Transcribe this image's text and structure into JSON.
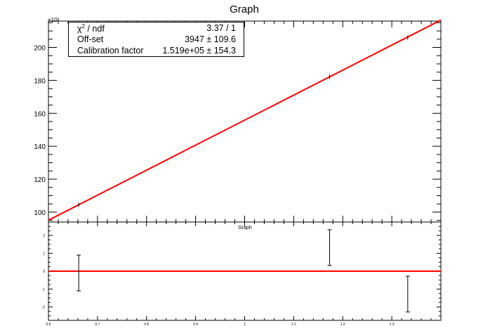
{
  "chart_data": [
    {
      "type": "scatter",
      "title": "Graph",
      "y_multiplier": "×10³",
      "ylim": [
        94000,
        216000
      ],
      "xlim": [
        0.6,
        1.4
      ],
      "yticks": [
        100,
        120,
        140,
        160,
        180,
        200
      ],
      "fit_line": {
        "x": [
          0.6,
          1.4
        ],
        "y": [
          95088,
          216608
        ],
        "color": "#ff0000"
      },
      "points": [
        {
          "x": 0.6617,
          "y": 104500
        },
        {
          "x": 1.1732,
          "y": 182100
        },
        {
          "x": 1.3325,
          "y": 206000
        }
      ],
      "stats_box": {
        "rows": [
          {
            "label": "χ² / ndf",
            "value": "3.37 / 1"
          },
          {
            "label": "Off-set",
            "value": "3947 ± 109.6"
          },
          {
            "label": "Calibration factor",
            "value": "1.519e+05 ± 154.3"
          }
        ]
      }
    },
    {
      "type": "scatter",
      "title": "Graph",
      "xlim": [
        0.6,
        1.4
      ],
      "ylim": [
        -2.75,
        2.75
      ],
      "xticks": [
        0.6,
        0.7,
        0.8,
        0.9,
        1,
        1.1,
        1.2,
        1.3
      ],
      "yticks": [
        -2,
        -1,
        0,
        1,
        2
      ],
      "ref_line": {
        "y": 0,
        "color": "#ff0000"
      },
      "points": [
        {
          "x": 0.6617,
          "y": -0.1,
          "err": 1.0
        },
        {
          "x": 1.1732,
          "y": 1.32,
          "err": 1.0
        },
        {
          "x": 1.3325,
          "y": -1.28,
          "err": 1.0
        }
      ]
    }
  ]
}
